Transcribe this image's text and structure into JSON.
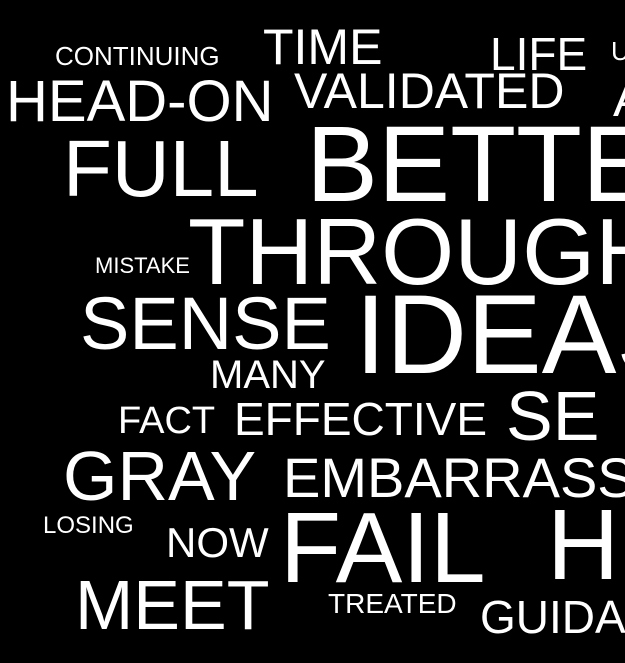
{
  "colors": {
    "background": "#000000",
    "text": "#ffffff"
  },
  "words": [
    {
      "text": "CONTINUING"
    },
    {
      "text": "TIME"
    },
    {
      "text": "LIFE"
    },
    {
      "text": "U"
    },
    {
      "text": "HEAD-ON"
    },
    {
      "text": "VALIDATED"
    },
    {
      "text": "A"
    },
    {
      "text": "FULL"
    },
    {
      "text": "BETTER"
    },
    {
      "text": "MISTAKE"
    },
    {
      "text": "THROUGH"
    },
    {
      "text": "SENSE"
    },
    {
      "text": "IDEAS"
    },
    {
      "text": "MANY"
    },
    {
      "text": "FACT"
    },
    {
      "text": "EFFECTIVE"
    },
    {
      "text": "SE"
    },
    {
      "text": "GRAY"
    },
    {
      "text": "EMBARRASS"
    },
    {
      "text": "LOSING"
    },
    {
      "text": "NOW"
    },
    {
      "text": "FAIL"
    },
    {
      "text": "H"
    },
    {
      "text": "MEET"
    },
    {
      "text": "TREATED"
    },
    {
      "text": "GUIDA"
    }
  ]
}
